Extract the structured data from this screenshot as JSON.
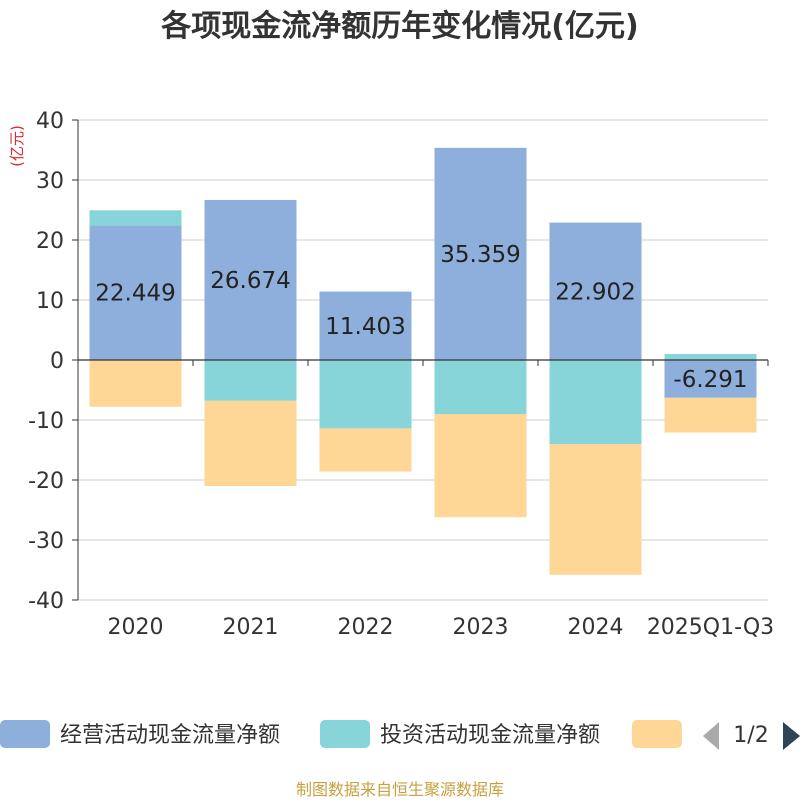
{
  "chart_data": {
    "type": "bar",
    "stacked": true,
    "title": "各项现金流净额历年变化情况(亿元)",
    "ylabel": "(亿元)",
    "xlabel": "",
    "ylim": [
      -40,
      40
    ],
    "y_ticks": [
      40,
      30,
      20,
      10,
      0,
      -10,
      -20,
      -30,
      -40
    ],
    "grid": true,
    "categories": [
      "2020",
      "2021",
      "2022",
      "2023",
      "2024",
      "2025Q1-Q3"
    ],
    "series": [
      {
        "name": "经营活动现金流量净额",
        "color": "#8eaedb",
        "values": [
          22.449,
          26.674,
          11.403,
          35.359,
          22.902,
          -6.291
        ],
        "labels": [
          "22.449",
          "26.674",
          "11.403",
          "35.359",
          "22.902",
          "-6.291"
        ]
      },
      {
        "name": "投资活动现金流量净额",
        "color": "#87d5d8",
        "values": [
          2.5,
          -6.8,
          -11.4,
          -9.0,
          -14.0,
          1.0
        ]
      },
      {
        "name": "",
        "color": "#fed797",
        "values": [
          -7.8,
          -14.2,
          -7.2,
          -17.2,
          -21.8,
          -5.8
        ]
      }
    ],
    "legend_position": "bottom",
    "legend_pager": "1/2",
    "source": "制图数据来自恒生聚源数据库"
  }
}
